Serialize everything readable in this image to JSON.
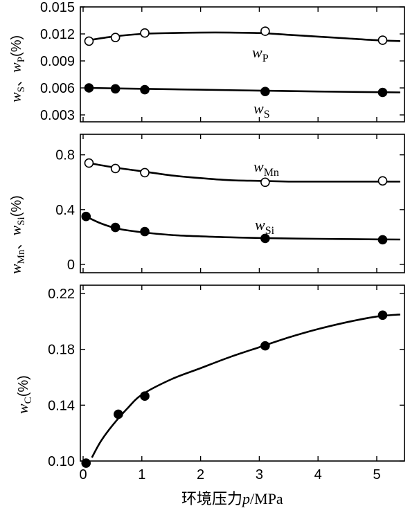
{
  "chart_data": [
    {
      "type": "line",
      "panel": "top",
      "ylabel": {
        "main": "w",
        "sub1": "S",
        "sep": "、",
        "main2": "w",
        "sub2": "P",
        "unit": "(%)"
      },
      "ylim": [
        0.003,
        0.015
      ],
      "yticks": [
        0.003,
        0.006,
        0.009,
        0.012,
        0.015
      ],
      "ytick_labels": [
        "0.003",
        "0.006",
        "0.009",
        "0.012",
        "0.015"
      ],
      "xlim": [
        0,
        5.4
      ],
      "series": [
        {
          "name": "P",
          "label_main": "w",
          "label_sub": "P",
          "marker": "open",
          "x": [
            0.1,
            0.55,
            1.05,
            3.1,
            5.1
          ],
          "y": [
            0.0112,
            0.0116,
            0.0121,
            0.0123,
            0.0113
          ],
          "curve_x": [
            0.1,
            0.5,
            1.0,
            1.5,
            2.0,
            2.5,
            3.0,
            3.5,
            4.0,
            4.5,
            5.0,
            5.4
          ],
          "curve_y": [
            0.0113,
            0.0117,
            0.012,
            0.0121,
            0.01215,
            0.01215,
            0.0121,
            0.0119,
            0.0117,
            0.0115,
            0.0113,
            0.0112
          ]
        },
        {
          "name": "S",
          "label_main": "w",
          "label_sub": "S",
          "marker": "filled",
          "x": [
            0.1,
            0.55,
            1.05,
            3.1,
            5.1
          ],
          "y": [
            0.006,
            0.0059,
            0.0058,
            0.0056,
            0.0055
          ],
          "curve_x": [
            0.1,
            1.0,
            2.0,
            3.0,
            4.0,
            5.4
          ],
          "curve_y": [
            0.006,
            0.0059,
            0.0058,
            0.0057,
            0.0056,
            0.0055
          ]
        }
      ]
    },
    {
      "type": "line",
      "panel": "middle",
      "ylabel": {
        "main": "w",
        "sub1": "Mn",
        "sep": "、",
        "main2": "w",
        "sub2": "Si",
        "unit": "(%)"
      },
      "ylim": [
        0,
        0.95
      ],
      "yticks": [
        0,
        0.4,
        0.8
      ],
      "ytick_labels": [
        "0",
        "0.4",
        "0.8"
      ],
      "xlim": [
        0,
        5.4
      ],
      "series": [
        {
          "name": "Mn",
          "label_main": "w",
          "label_sub": "Mn",
          "marker": "open",
          "x": [
            0.1,
            0.55,
            1.05,
            3.1,
            5.1
          ],
          "y": [
            0.74,
            0.7,
            0.67,
            0.6,
            0.61
          ],
          "curve_x": [
            0.1,
            0.5,
            1.0,
            1.5,
            2.0,
            2.5,
            3.0,
            3.5,
            4.0,
            4.5,
            5.0,
            5.4
          ],
          "curve_y": [
            0.74,
            0.71,
            0.68,
            0.65,
            0.63,
            0.615,
            0.61,
            0.605,
            0.605,
            0.605,
            0.605,
            0.605
          ]
        },
        {
          "name": "Si",
          "label_main": "w",
          "label_sub": "Si",
          "marker": "filled",
          "x": [
            0.05,
            0.55,
            1.05,
            3.1,
            5.1
          ],
          "y": [
            0.35,
            0.27,
            0.24,
            0.19,
            0.18
          ],
          "curve_x": [
            0.05,
            0.3,
            0.6,
            1.0,
            1.5,
            2.0,
            2.5,
            3.0,
            4.0,
            5.0,
            5.4
          ],
          "curve_y": [
            0.35,
            0.3,
            0.26,
            0.235,
            0.215,
            0.205,
            0.198,
            0.193,
            0.187,
            0.183,
            0.182
          ]
        }
      ]
    },
    {
      "type": "line",
      "panel": "bottom",
      "ylabel": {
        "main": "w",
        "sub1": "C",
        "unit": "(%)"
      },
      "ylim": [
        0.1,
        0.22
      ],
      "yticks": [
        0.1,
        0.14,
        0.18,
        0.22
      ],
      "ytick_labels": [
        "0.10",
        "0.14",
        "0.18",
        "0.22"
      ],
      "xlim": [
        0,
        5.4
      ],
      "xticks": [
        0,
        1,
        2,
        3,
        4,
        5
      ],
      "xtick_labels": [
        "0",
        "1",
        "2",
        "3",
        "4",
        "5"
      ],
      "xlabel": {
        "prefix": "环境压力",
        "var": "p",
        "unit": "/MPa"
      },
      "series": [
        {
          "name": "C",
          "marker": "filled",
          "x": [
            0.05,
            0.6,
            1.05,
            3.1,
            5.1
          ],
          "y": [
            0.0985,
            0.1335,
            0.1465,
            0.1825,
            0.2045
          ],
          "curve_x": [
            0.15,
            0.3,
            0.5,
            0.75,
            1.0,
            1.5,
            2.0,
            2.5,
            3.0,
            3.5,
            4.0,
            4.5,
            5.0,
            5.4
          ],
          "curve_y": [
            0.1025,
            0.114,
            0.1255,
            0.1375,
            0.1475,
            0.1585,
            0.1665,
            0.1745,
            0.1815,
            0.1885,
            0.1945,
            0.1995,
            0.2035,
            0.205
          ]
        }
      ]
    }
  ]
}
